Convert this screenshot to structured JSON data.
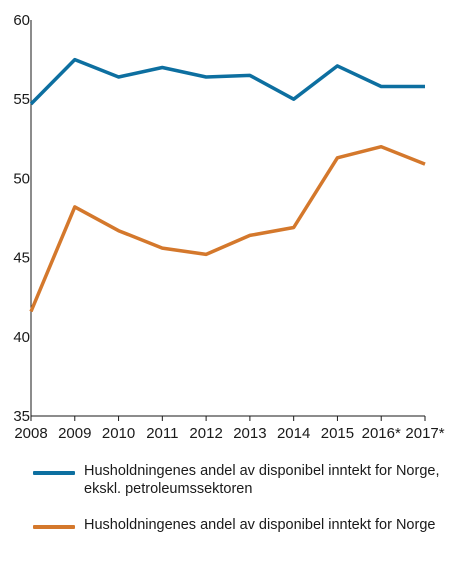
{
  "chart_data": {
    "type": "line",
    "title": "",
    "xlabel": "",
    "ylabel": "",
    "categories": [
      "2008",
      "2009",
      "2010",
      "2011",
      "2012",
      "2013",
      "2014",
      "2015",
      "2016*",
      "2017*"
    ],
    "ylim": [
      35,
      60
    ],
    "yticks": [
      35,
      40,
      45,
      50,
      55,
      60
    ],
    "grid": false,
    "legend_position": "bottom",
    "series": [
      {
        "name": "Husholdningenes andel av disponibel inntekt for Norge, ekskl. petroleumssektoren",
        "color": "#0d6fa0",
        "values": [
          54.7,
          57.5,
          56.4,
          57.0,
          56.4,
          56.5,
          55.0,
          57.1,
          55.8,
          55.8
        ]
      },
      {
        "name": "Husholdningenes andel av disponibel inntekt for Norge",
        "color": "#d4782c",
        "values": [
          41.6,
          48.2,
          46.7,
          45.6,
          45.2,
          46.4,
          46.9,
          51.3,
          52.0,
          50.9
        ]
      }
    ]
  }
}
